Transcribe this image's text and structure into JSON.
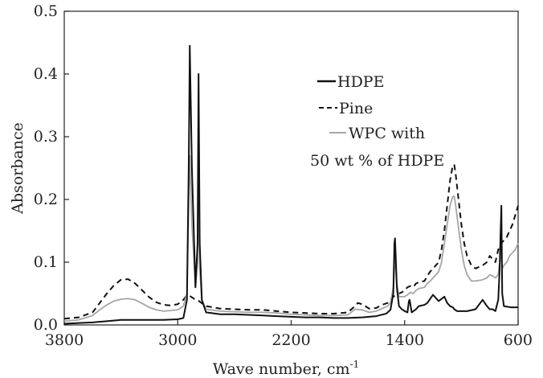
{
  "chart_data": {
    "type": "line",
    "title": "",
    "xlabel": "Wave number, cm",
    "xlabel_superscript": "-1",
    "ylabel": "Absorbance",
    "xlim": [
      3800,
      600
    ],
    "ylim": [
      0,
      0.5
    ],
    "x_ticks": [
      3800,
      3000,
      2200,
      1400,
      600
    ],
    "x_tick_labels": [
      "3800",
      "3000",
      "2200",
      "1400",
      "600"
    ],
    "y_ticks": [
      0,
      0.1,
      0.2,
      0.3,
      0.4,
      0.5
    ],
    "y_tick_labels": [
      "0.0",
      "0.1",
      "0.2",
      "0.3",
      "0.4",
      "0.5"
    ],
    "grid": false,
    "legend_position": "upper-right",
    "series": [
      {
        "name": "HDPE",
        "style": "solid",
        "color": "#111111",
        "x": [
          3800,
          3700,
          3600,
          3500,
          3400,
          3300,
          3200,
          3100,
          3000,
          2960,
          2935,
          2922,
          2915,
          2900,
          2875,
          2860,
          2853,
          2845,
          2830,
          2800,
          2700,
          2600,
          2500,
          2400,
          2300,
          2200,
          2100,
          2000,
          1900,
          1800,
          1700,
          1600,
          1530,
          1500,
          1480,
          1472,
          1468,
          1463,
          1455,
          1440,
          1420,
          1400,
          1380,
          1370,
          1365,
          1350,
          1320,
          1300,
          1260,
          1240,
          1200,
          1160,
          1120,
          1100,
          1080,
          1060,
          1050,
          1030,
          1000,
          960,
          900,
          850,
          820,
          800,
          780,
          760,
          740,
          730,
          725,
          718,
          712,
          700,
          650,
          600
        ],
        "y": [
          0.002,
          0.003,
          0.004,
          0.006,
          0.008,
          0.008,
          0.008,
          0.008,
          0.009,
          0.011,
          0.04,
          0.26,
          0.445,
          0.25,
          0.06,
          0.13,
          0.4,
          0.13,
          0.04,
          0.02,
          0.017,
          0.017,
          0.016,
          0.015,
          0.014,
          0.013,
          0.012,
          0.012,
          0.011,
          0.011,
          0.012,
          0.014,
          0.018,
          0.024,
          0.05,
          0.13,
          0.138,
          0.11,
          0.06,
          0.03,
          0.025,
          0.022,
          0.02,
          0.038,
          0.04,
          0.02,
          0.025,
          0.03,
          0.032,
          0.035,
          0.048,
          0.038,
          0.045,
          0.035,
          0.03,
          0.028,
          0.025,
          0.022,
          0.022,
          0.022,
          0.025,
          0.04,
          0.03,
          0.025,
          0.025,
          0.022,
          0.04,
          0.09,
          0.135,
          0.19,
          0.05,
          0.03,
          0.028,
          0.028
        ]
      },
      {
        "name": "Pine",
        "style": "dashed",
        "color": "#111111",
        "x": [
          3800,
          3700,
          3600,
          3550,
          3500,
          3450,
          3400,
          3350,
          3300,
          3250,
          3200,
          3150,
          3100,
          3050,
          3000,
          2960,
          2940,
          2920,
          2900,
          2880,
          2850,
          2820,
          2800,
          2700,
          2600,
          2500,
          2400,
          2300,
          2200,
          2100,
          2000,
          1900,
          1800,
          1750,
          1730,
          1700,
          1650,
          1600,
          1560,
          1520,
          1500,
          1480,
          1460,
          1440,
          1420,
          1400,
          1380,
          1360,
          1340,
          1320,
          1300,
          1260,
          1240,
          1220,
          1200,
          1180,
          1160,
          1140,
          1120,
          1100,
          1080,
          1060,
          1050,
          1040,
          1020,
          1000,
          980,
          960,
          930,
          900,
          850,
          820,
          800,
          780,
          760,
          740,
          720,
          700,
          680,
          660,
          640,
          620,
          600
        ],
        "y": [
          0.01,
          0.012,
          0.02,
          0.035,
          0.05,
          0.063,
          0.072,
          0.073,
          0.066,
          0.055,
          0.044,
          0.036,
          0.032,
          0.031,
          0.033,
          0.04,
          0.046,
          0.047,
          0.044,
          0.041,
          0.038,
          0.033,
          0.03,
          0.026,
          0.025,
          0.024,
          0.024,
          0.022,
          0.02,
          0.019,
          0.018,
          0.018,
          0.02,
          0.03,
          0.035,
          0.033,
          0.026,
          0.027,
          0.032,
          0.035,
          0.04,
          0.045,
          0.048,
          0.05,
          0.052,
          0.055,
          0.06,
          0.062,
          0.06,
          0.066,
          0.068,
          0.07,
          0.078,
          0.085,
          0.09,
          0.095,
          0.1,
          0.12,
          0.15,
          0.19,
          0.23,
          0.255,
          0.255,
          0.24,
          0.2,
          0.16,
          0.13,
          0.11,
          0.095,
          0.09,
          0.095,
          0.1,
          0.11,
          0.105,
          0.1,
          0.12,
          0.13,
          0.135,
          0.14,
          0.15,
          0.16,
          0.175,
          0.19
        ]
      },
      {
        "name": "WPC with 50 wt % of HDPE",
        "style": "solid",
        "color": "#a6a6a6",
        "x": [
          3800,
          3700,
          3600,
          3550,
          3500,
          3450,
          3400,
          3350,
          3300,
          3250,
          3200,
          3150,
          3100,
          3000,
          2960,
          2935,
          2922,
          2915,
          2900,
          2875,
          2860,
          2853,
          2845,
          2830,
          2800,
          2700,
          2600,
          2500,
          2400,
          2300,
          2200,
          2100,
          2000,
          1900,
          1800,
          1750,
          1700,
          1650,
          1600,
          1520,
          1500,
          1480,
          1470,
          1465,
          1458,
          1440,
          1420,
          1400,
          1380,
          1360,
          1340,
          1320,
          1300,
          1260,
          1240,
          1220,
          1200,
          1180,
          1160,
          1140,
          1120,
          1100,
          1080,
          1060,
          1050,
          1040,
          1020,
          1000,
          980,
          960,
          930,
          900,
          850,
          820,
          800,
          780,
          760,
          740,
          730,
          722,
          715,
          710,
          700,
          680,
          660,
          640,
          620,
          600
        ],
        "y": [
          0.006,
          0.008,
          0.015,
          0.024,
          0.032,
          0.038,
          0.041,
          0.042,
          0.04,
          0.034,
          0.028,
          0.024,
          0.022,
          0.024,
          0.03,
          0.05,
          0.2,
          0.27,
          0.16,
          0.06,
          0.1,
          0.235,
          0.09,
          0.04,
          0.025,
          0.022,
          0.021,
          0.02,
          0.02,
          0.019,
          0.017,
          0.016,
          0.015,
          0.015,
          0.016,
          0.025,
          0.024,
          0.02,
          0.022,
          0.03,
          0.035,
          0.06,
          0.1,
          0.105,
          0.07,
          0.045,
          0.045,
          0.045,
          0.048,
          0.052,
          0.05,
          0.055,
          0.058,
          0.06,
          0.066,
          0.07,
          0.075,
          0.08,
          0.085,
          0.1,
          0.13,
          0.16,
          0.19,
          0.205,
          0.205,
          0.19,
          0.155,
          0.12,
          0.095,
          0.08,
          0.07,
          0.07,
          0.072,
          0.075,
          0.08,
          0.078,
          0.075,
          0.08,
          0.1,
          0.13,
          0.1,
          0.09,
          0.095,
          0.1,
          0.11,
          0.115,
          0.12,
          0.13
        ]
      }
    ],
    "legend": {
      "entries": [
        {
          "label": "HDPE"
        },
        {
          "label": "Pine"
        },
        {
          "label": "WPC with"
        }
      ],
      "extra_line": "50 wt % of HDPE"
    }
  }
}
